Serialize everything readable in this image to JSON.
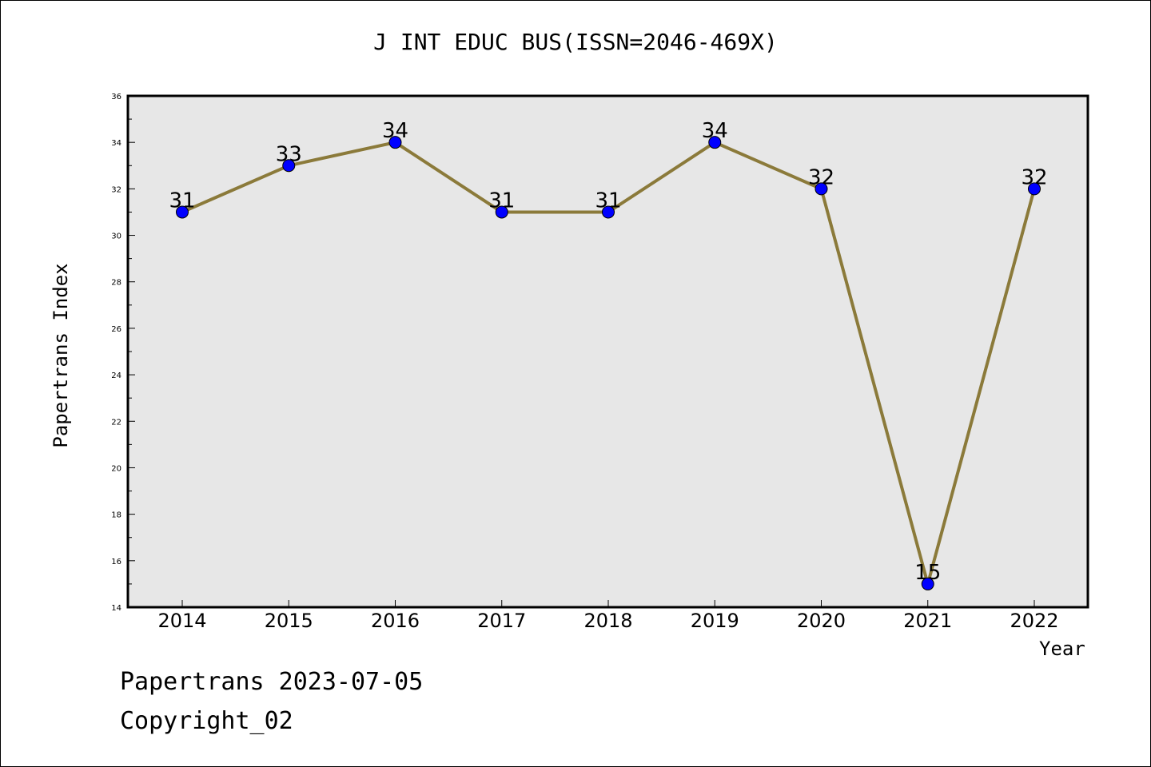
{
  "title": "J INT EDUC BUS(ISSN=2046-469X)",
  "footer": {
    "date_line": "Papertrans 2023-07-05",
    "copyright_line": "Copyright_02"
  },
  "chart_data": {
    "type": "line",
    "title": "J INT EDUC BUS(ISSN=2046-469X)",
    "xlabel": "Year",
    "ylabel": "Papertrans Index",
    "categories": [
      "2014",
      "2015",
      "2016",
      "2017",
      "2018",
      "2019",
      "2020",
      "2021",
      "2022"
    ],
    "values": [
      31,
      33,
      34,
      31,
      31,
      34,
      32,
      15,
      32
    ],
    "ylim": [
      14,
      36
    ],
    "yticks": [
      14,
      16,
      18,
      20,
      22,
      24,
      26,
      28,
      30,
      32,
      34,
      36
    ],
    "grid": false,
    "legend": "none",
    "colors": {
      "line": "#8b7a3a",
      "marker": "#0000ff",
      "plot_background": "#e7e7e7",
      "axis": "#000000"
    }
  }
}
